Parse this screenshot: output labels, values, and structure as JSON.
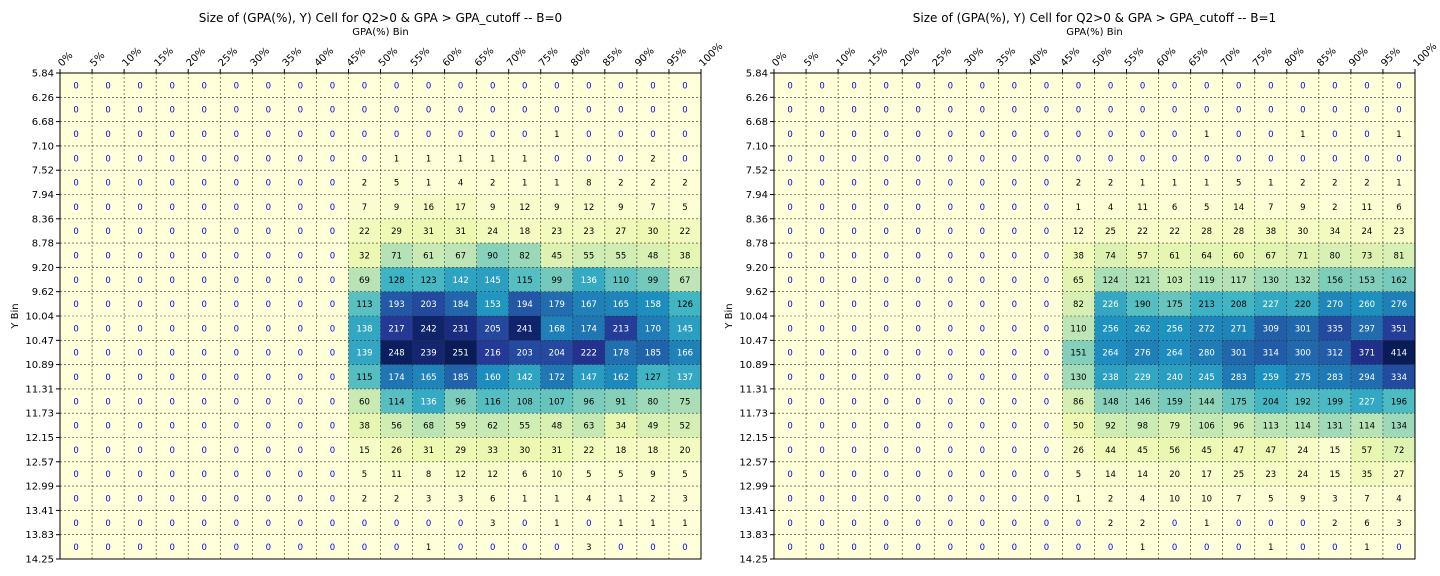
{
  "chart_data": [
    {
      "type": "heatmap",
      "title": "Size of (GPA(%), Y) Cell for Q2>0 & GPA > GPA_cutoff -- B=0",
      "xlabel": "GPA(%) Bin",
      "ylabel": "Y Bin",
      "x_ticks": [
        "0%",
        "5%",
        "10%",
        "15%",
        "20%",
        "25%",
        "30%",
        "35%",
        "40%",
        "45%",
        "50%",
        "55%",
        "60%",
        "65%",
        "70%",
        "75%",
        "80%",
        "85%",
        "90%",
        "95%",
        "100%"
      ],
      "y_ticks": [
        "5.84",
        "6.26",
        "6.68",
        "7.10",
        "7.52",
        "7.94",
        "8.36",
        "8.78",
        "9.20",
        "9.62",
        "10.04",
        "10.47",
        "10.89",
        "11.31",
        "11.73",
        "12.15",
        "12.57",
        "12.99",
        "13.41",
        "13.83",
        "14.25"
      ],
      "grid": true,
      "colormap": "YlGnBu",
      "zero_label_color": "#0000ff",
      "values": [
        [
          0,
          0,
          0,
          0,
          0,
          0,
          0,
          0,
          0,
          0,
          0,
          0,
          0,
          0,
          0,
          0,
          0,
          0,
          0,
          0
        ],
        [
          0,
          0,
          0,
          0,
          0,
          0,
          0,
          0,
          0,
          0,
          0,
          0,
          0,
          0,
          0,
          0,
          0,
          0,
          0,
          0
        ],
        [
          0,
          0,
          0,
          0,
          0,
          0,
          0,
          0,
          0,
          0,
          0,
          0,
          0,
          0,
          0,
          1,
          0,
          0,
          0,
          0
        ],
        [
          0,
          0,
          0,
          0,
          0,
          0,
          0,
          0,
          0,
          0,
          1,
          1,
          1,
          1,
          1,
          0,
          0,
          0,
          2,
          0
        ],
        [
          0,
          0,
          0,
          0,
          0,
          0,
          0,
          0,
          0,
          2,
          5,
          1,
          4,
          2,
          1,
          1,
          8,
          2,
          2,
          2
        ],
        [
          0,
          0,
          0,
          0,
          0,
          0,
          0,
          0,
          0,
          7,
          9,
          16,
          17,
          9,
          12,
          9,
          12,
          9,
          7,
          5
        ],
        [
          0,
          0,
          0,
          0,
          0,
          0,
          0,
          0,
          0,
          22,
          29,
          31,
          31,
          24,
          18,
          23,
          23,
          27,
          30,
          22
        ],
        [
          0,
          0,
          0,
          0,
          0,
          0,
          0,
          0,
          0,
          32,
          71,
          61,
          67,
          90,
          82,
          45,
          55,
          55,
          48,
          38
        ],
        [
          0,
          0,
          0,
          0,
          0,
          0,
          0,
          0,
          0,
          69,
          128,
          123,
          142,
          145,
          115,
          99,
          136,
          110,
          99,
          67
        ],
        [
          0,
          0,
          0,
          0,
          0,
          0,
          0,
          0,
          0,
          113,
          193,
          203,
          184,
          153,
          194,
          179,
          167,
          165,
          158,
          126
        ],
        [
          0,
          0,
          0,
          0,
          0,
          0,
          0,
          0,
          0,
          138,
          217,
          242,
          231,
          205,
          241,
          168,
          174,
          213,
          170,
          145
        ],
        [
          0,
          0,
          0,
          0,
          0,
          0,
          0,
          0,
          0,
          139,
          248,
          239,
          251,
          216,
          203,
          204,
          222,
          178,
          185,
          166
        ],
        [
          0,
          0,
          0,
          0,
          0,
          0,
          0,
          0,
          0,
          115,
          174,
          165,
          185,
          160,
          142,
          172,
          147,
          162,
          127,
          137
        ],
        [
          0,
          0,
          0,
          0,
          0,
          0,
          0,
          0,
          0,
          60,
          114,
          136,
          96,
          116,
          108,
          107,
          96,
          91,
          80,
          75
        ],
        [
          0,
          0,
          0,
          0,
          0,
          0,
          0,
          0,
          0,
          38,
          56,
          68,
          59,
          62,
          55,
          48,
          63,
          34,
          49,
          52
        ],
        [
          0,
          0,
          0,
          0,
          0,
          0,
          0,
          0,
          0,
          15,
          26,
          31,
          29,
          33,
          30,
          31,
          22,
          18,
          18,
          20
        ],
        [
          0,
          0,
          0,
          0,
          0,
          0,
          0,
          0,
          0,
          5,
          11,
          8,
          12,
          12,
          6,
          10,
          5,
          5,
          9,
          5
        ],
        [
          0,
          0,
          0,
          0,
          0,
          0,
          0,
          0,
          0,
          2,
          2,
          3,
          3,
          6,
          1,
          1,
          4,
          1,
          2,
          3
        ],
        [
          0,
          0,
          0,
          0,
          0,
          0,
          0,
          0,
          0,
          0,
          0,
          0,
          0,
          3,
          0,
          1,
          0,
          1,
          1,
          1
        ],
        [
          0,
          0,
          0,
          0,
          0,
          0,
          0,
          0,
          0,
          0,
          0,
          1,
          0,
          0,
          0,
          0,
          3,
          0,
          0,
          0
        ]
      ]
    },
    {
      "type": "heatmap",
      "title": "Size of (GPA(%), Y) Cell for Q2>0 & GPA > GPA_cutoff -- B=1",
      "xlabel": "GPA(%) Bin",
      "ylabel": "Y Bin",
      "x_ticks": [
        "0%",
        "5%",
        "10%",
        "15%",
        "20%",
        "25%",
        "30%",
        "35%",
        "40%",
        "45%",
        "50%",
        "55%",
        "60%",
        "65%",
        "70%",
        "75%",
        "80%",
        "85%",
        "90%",
        "95%",
        "100%"
      ],
      "y_ticks": [
        "5.84",
        "6.26",
        "6.68",
        "7.10",
        "7.52",
        "7.94",
        "8.36",
        "8.78",
        "9.20",
        "9.62",
        "10.04",
        "10.47",
        "10.89",
        "11.31",
        "11.73",
        "12.15",
        "12.57",
        "12.99",
        "13.41",
        "13.83",
        "14.25"
      ],
      "grid": true,
      "colormap": "YlGnBu",
      "zero_label_color": "#0000ff",
      "values": [
        [
          0,
          0,
          0,
          0,
          0,
          0,
          0,
          0,
          0,
          0,
          0,
          0,
          0,
          0,
          0,
          0,
          0,
          0,
          0,
          0
        ],
        [
          0,
          0,
          0,
          0,
          0,
          0,
          0,
          0,
          0,
          0,
          0,
          0,
          0,
          0,
          0,
          0,
          0,
          0,
          0,
          0
        ],
        [
          0,
          0,
          0,
          0,
          0,
          0,
          0,
          0,
          0,
          0,
          0,
          0,
          0,
          1,
          0,
          0,
          1,
          0,
          0,
          1
        ],
        [
          0,
          0,
          0,
          0,
          0,
          0,
          0,
          0,
          0,
          0,
          0,
          0,
          0,
          0,
          0,
          0,
          0,
          0,
          0,
          0
        ],
        [
          0,
          0,
          0,
          0,
          0,
          0,
          0,
          0,
          0,
          2,
          2,
          1,
          1,
          1,
          5,
          1,
          2,
          2,
          2,
          1
        ],
        [
          0,
          0,
          0,
          0,
          0,
          0,
          0,
          0,
          0,
          1,
          4,
          11,
          6,
          5,
          14,
          7,
          9,
          2,
          11,
          6
        ],
        [
          0,
          0,
          0,
          0,
          0,
          0,
          0,
          0,
          0,
          12,
          25,
          22,
          22,
          28,
          28,
          38,
          30,
          34,
          24,
          23
        ],
        [
          0,
          0,
          0,
          0,
          0,
          0,
          0,
          0,
          0,
          38,
          74,
          57,
          61,
          64,
          60,
          67,
          71,
          80,
          73,
          81
        ],
        [
          0,
          0,
          0,
          0,
          0,
          0,
          0,
          0,
          0,
          65,
          124,
          121,
          103,
          119,
          117,
          130,
          132,
          156,
          153,
          162
        ],
        [
          0,
          0,
          0,
          0,
          0,
          0,
          0,
          0,
          0,
          82,
          226,
          190,
          175,
          213,
          208,
          227,
          220,
          270,
          260,
          276
        ],
        [
          0,
          0,
          0,
          0,
          0,
          0,
          0,
          0,
          0,
          110,
          256,
          262,
          256,
          272,
          271,
          309,
          301,
          335,
          297,
          351
        ],
        [
          0,
          0,
          0,
          0,
          0,
          0,
          0,
          0,
          0,
          151,
          264,
          276,
          264,
          280,
          301,
          314,
          300,
          312,
          371,
          414
        ],
        [
          0,
          0,
          0,
          0,
          0,
          0,
          0,
          0,
          0,
          130,
          238,
          229,
          240,
          245,
          283,
          259,
          275,
          283,
          294,
          334
        ],
        [
          0,
          0,
          0,
          0,
          0,
          0,
          0,
          0,
          0,
          86,
          148,
          146,
          159,
          144,
          175,
          204,
          192,
          199,
          227,
          196
        ],
        [
          0,
          0,
          0,
          0,
          0,
          0,
          0,
          0,
          0,
          50,
          92,
          98,
          79,
          106,
          96,
          113,
          114,
          131,
          114,
          134
        ],
        [
          0,
          0,
          0,
          0,
          0,
          0,
          0,
          0,
          0,
          26,
          44,
          45,
          56,
          45,
          47,
          47,
          24,
          15,
          57,
          72
        ],
        [
          0,
          0,
          0,
          0,
          0,
          0,
          0,
          0,
          0,
          5,
          14,
          14,
          20,
          17,
          25,
          23,
          24,
          15,
          35,
          27
        ],
        [
          0,
          0,
          0,
          0,
          0,
          0,
          0,
          0,
          0,
          1,
          2,
          4,
          10,
          10,
          7,
          5,
          9,
          3,
          7,
          4
        ],
        [
          0,
          0,
          0,
          0,
          0,
          0,
          0,
          0,
          0,
          0,
          2,
          2,
          0,
          1,
          0,
          0,
          0,
          2,
          6,
          3
        ],
        [
          0,
          0,
          0,
          0,
          0,
          0,
          0,
          0,
          0,
          0,
          0,
          1,
          0,
          0,
          0,
          1,
          0,
          0,
          1,
          0
        ]
      ]
    }
  ]
}
